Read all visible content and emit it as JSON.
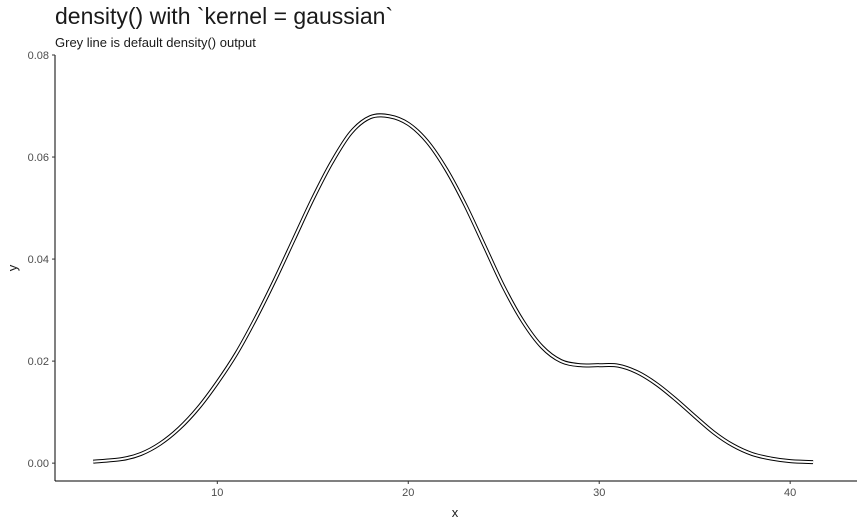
{
  "chart_data": {
    "type": "line",
    "title": "density() with `kernel = gaussian`",
    "subtitle": "Grey line is default density() output",
    "xlabel": "x",
    "ylabel": "y",
    "xlim": [
      1.5,
      43.5
    ],
    "ylim": [
      -0.0035,
      0.08
    ],
    "x_ticks": [
      10,
      20,
      30,
      40
    ],
    "y_ticks": [
      0.0,
      0.02,
      0.04,
      0.06,
      0.08
    ],
    "y_tick_labels": [
      "0.00",
      "0.02",
      "0.04",
      "0.06",
      "0.08"
    ],
    "grid": false,
    "series": [
      {
        "color": "#000000",
        "x": [
          3.5,
          5,
          6,
          7,
          8,
          9,
          10,
          11,
          12,
          13,
          14,
          15,
          16,
          17,
          18,
          19,
          20,
          21,
          22,
          23,
          24,
          25,
          26,
          27,
          28,
          29,
          30,
          31,
          32,
          33,
          34,
          35,
          36,
          37,
          38,
          39,
          40,
          41.2
        ],
        "y": [
          0.0003,
          0.0008,
          0.0018,
          0.0038,
          0.0068,
          0.0108,
          0.0158,
          0.0215,
          0.0283,
          0.0358,
          0.0438,
          0.0518,
          0.059,
          0.0648,
          0.0678,
          0.068,
          0.0665,
          0.063,
          0.0575,
          0.0505,
          0.0425,
          0.0345,
          0.0278,
          0.0228,
          0.02,
          0.0192,
          0.0192,
          0.0191,
          0.0178,
          0.0155,
          0.0125,
          0.0092,
          0.006,
          0.0035,
          0.0018,
          0.0009,
          0.0004,
          0.0002
        ]
      }
    ]
  }
}
